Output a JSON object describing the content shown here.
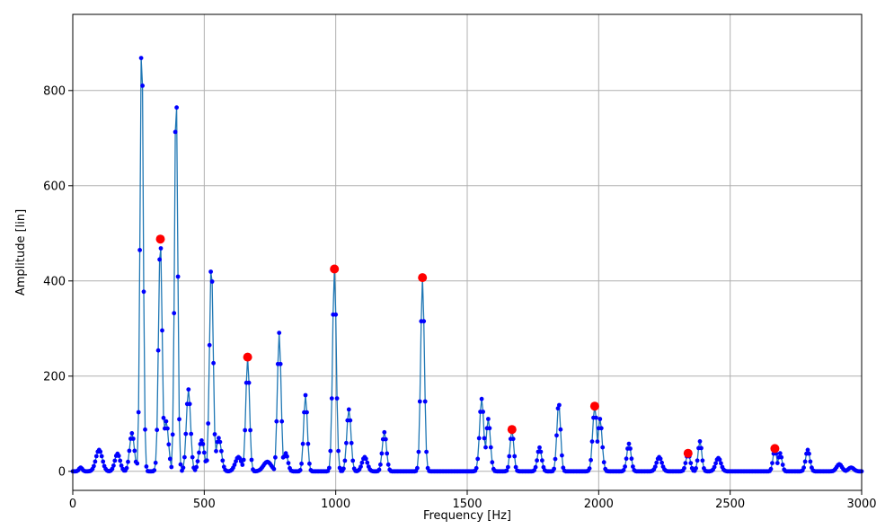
{
  "chart_data": {
    "type": "line",
    "title": "",
    "xlabel": "Frequency [Hz]",
    "ylabel": "Amplitude [lin]",
    "xlim": [
      0,
      3000
    ],
    "ylim": [
      -40,
      960
    ],
    "xticks": [
      0,
      500,
      1000,
      1500,
      2000,
      2500,
      3000
    ],
    "yticks": [
      0,
      200,
      400,
      600,
      800
    ],
    "grid": true,
    "legend": "none",
    "colors": {
      "line": "#1f77b4",
      "markers": "#0000ff",
      "peaks": "#ff0000"
    },
    "spectrum_peaks": [
      {
        "f": 30,
        "a": 8,
        "w": 6
      },
      {
        "f": 100,
        "a": 45,
        "w": 12
      },
      {
        "f": 170,
        "a": 37,
        "w": 10
      },
      {
        "f": 225,
        "a": 80,
        "w": 9
      },
      {
        "f": 262,
        "a": 918,
        "w": 6
      },
      {
        "f": 333,
        "a": 488,
        "w": 7
      },
      {
        "f": 355,
        "a": 105,
        "w": 9
      },
      {
        "f": 393,
        "a": 808,
        "w": 6
      },
      {
        "f": 440,
        "a": 172,
        "w": 8
      },
      {
        "f": 490,
        "a": 65,
        "w": 10
      },
      {
        "f": 527,
        "a": 437,
        "w": 7
      },
      {
        "f": 555,
        "a": 70,
        "w": 10
      },
      {
        "f": 630,
        "a": 30,
        "w": 12
      },
      {
        "f": 665,
        "a": 240,
        "w": 7
      },
      {
        "f": 740,
        "a": 20,
        "w": 15
      },
      {
        "f": 785,
        "a": 291,
        "w": 7
      },
      {
        "f": 810,
        "a": 38,
        "w": 8
      },
      {
        "f": 885,
        "a": 160,
        "w": 7
      },
      {
        "f": 995,
        "a": 425,
        "w": 7
      },
      {
        "f": 1050,
        "a": 130,
        "w": 8
      },
      {
        "f": 1110,
        "a": 30,
        "w": 10
      },
      {
        "f": 1185,
        "a": 82,
        "w": 8
      },
      {
        "f": 1330,
        "a": 407,
        "w": 7
      },
      {
        "f": 1555,
        "a": 152,
        "w": 8
      },
      {
        "f": 1580,
        "a": 110,
        "w": 8
      },
      {
        "f": 1670,
        "a": 88,
        "w": 7
      },
      {
        "f": 1775,
        "a": 50,
        "w": 8
      },
      {
        "f": 1848,
        "a": 145,
        "w": 7
      },
      {
        "f": 1985,
        "a": 137,
        "w": 8
      },
      {
        "f": 2005,
        "a": 110,
        "w": 8
      },
      {
        "f": 2115,
        "a": 58,
        "w": 8
      },
      {
        "f": 2230,
        "a": 30,
        "w": 10
      },
      {
        "f": 2340,
        "a": 38,
        "w": 8
      },
      {
        "f": 2385,
        "a": 63,
        "w": 7
      },
      {
        "f": 2455,
        "a": 28,
        "w": 10
      },
      {
        "f": 2670,
        "a": 48,
        "w": 7
      },
      {
        "f": 2690,
        "a": 38,
        "w": 7
      },
      {
        "f": 2795,
        "a": 45,
        "w": 8
      },
      {
        "f": 2915,
        "a": 15,
        "w": 10
      },
      {
        "f": 2960,
        "a": 8,
        "w": 10
      }
    ],
    "highlighted_peaks": [
      {
        "x": 333,
        "y": 488
      },
      {
        "x": 665,
        "y": 240
      },
      {
        "x": 995,
        "y": 425
      },
      {
        "x": 1330,
        "y": 407
      },
      {
        "x": 1670,
        "y": 88
      },
      {
        "x": 1985,
        "y": 137
      },
      {
        "x": 2340,
        "y": 38
      },
      {
        "x": 2670,
        "y": 48
      }
    ]
  }
}
